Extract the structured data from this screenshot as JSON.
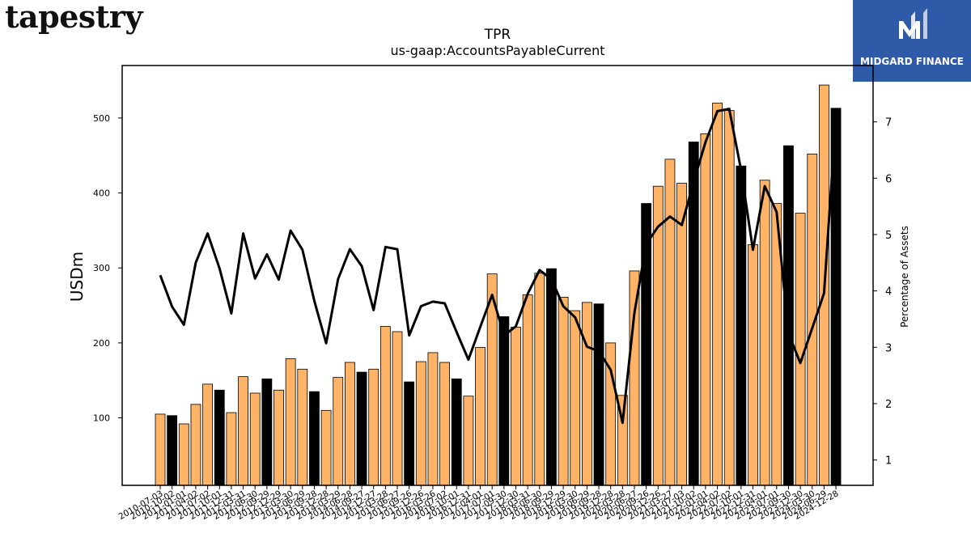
{
  "brand": {
    "name": "tapestry"
  },
  "logo": {
    "name": "MIDGARD FINANCE",
    "colors": {
      "background": "#2f5aa8",
      "text": "#ffffff"
    }
  },
  "chart_data": {
    "type": "bar",
    "title": "TPR",
    "subtitle": "us-gaap:AccountsPayableCurrent",
    "ylabel": "USDm",
    "y2label": "Percentage of Assets",
    "ylim": [
      10,
      570
    ],
    "y2lim": [
      0.55,
      8.0
    ],
    "yticks": [
      100,
      200,
      300,
      400,
      500
    ],
    "y2ticks": [
      1,
      2,
      3,
      4,
      5,
      6,
      7
    ],
    "colors": {
      "quarter": "#ffb366",
      "fiscal_year_end": "#000000",
      "line": "#000000"
    },
    "categories": [
      "2010-07-03",
      "2010-10-02",
      "2011-01-01",
      "2011-04-02",
      "2011-07-02",
      "2011-10-01",
      "2011-12-31",
      "2012-03-31",
      "2012-06-30",
      "2012-09-29",
      "2012-12-29",
      "2013-03-30",
      "2013-06-29",
      "2013-09-28",
      "2013-12-28",
      "2014-03-29",
      "2014-06-28",
      "2014-09-27",
      "2014-12-27",
      "2015-03-28",
      "2015-06-27",
      "2015-09-26",
      "2015-12-26",
      "2016-03-26",
      "2016-07-02",
      "2016-10-01",
      "2016-12-31",
      "2017-04-01",
      "2017-07-01",
      "2017-09-30",
      "2017-12-30",
      "2018-03-31",
      "2018-06-30",
      "2018-09-29",
      "2018-12-29",
      "2019-03-30",
      "2019-06-29",
      "2019-09-28",
      "2019-12-28",
      "2020-03-28",
      "2020-06-27",
      "2020-09-26",
      "2020-12-26",
      "2021-03-27",
      "2021-07-03",
      "2021-10-02",
      "2022-01-01",
      "2022-04-02",
      "2022-07-02",
      "2022-10-01",
      "2022-12-31",
      "2023-04-01",
      "2023-07-01",
      "2023-09-30",
      "2023-12-30",
      "2024-03-30",
      "2024-06-29",
      "2024-12-28"
    ],
    "series": [
      {
        "values": [
          105,
          103,
          92,
          118,
          145,
          137,
          107,
          155,
          133,
          152,
          137,
          179,
          165,
          135,
          110,
          154,
          174,
          161,
          165,
          222,
          215,
          148,
          175,
          187,
          174,
          152,
          129,
          194,
          292,
          235,
          221,
          264,
          293,
          299,
          261,
          243,
          254,
          252,
          200,
          130,
          296,
          386,
          409,
          445,
          413,
          468,
          479,
          520,
          510,
          436,
          331,
          417,
          386,
          463,
          373,
          452,
          544,
          513
        ]
      },
      {
        "values": [
          4.28,
          3.72,
          3.4,
          4.5,
          5.02,
          4.4,
          3.6,
          5.02,
          4.22,
          4.65,
          4.2,
          5.07,
          4.73,
          3.82,
          3.07,
          4.21,
          4.74,
          4.44,
          3.66,
          4.78,
          4.74,
          3.21,
          3.73,
          3.81,
          3.78,
          3.27,
          2.78,
          3.36,
          3.93,
          3.21,
          3.37,
          3.95,
          4.37,
          4.21,
          3.73,
          3.53,
          3.01,
          2.93,
          2.6,
          1.66,
          3.61,
          4.83,
          5.14,
          5.32,
          5.17,
          5.94,
          6.64,
          7.19,
          7.23,
          6.14,
          4.73,
          5.86,
          5.4,
          3.24,
          2.72,
          3.34,
          3.96,
          7.1
        ]
      }
    ],
    "fiscal_year_end_flags": [
      0,
      1,
      0,
      0,
      0,
      1,
      0,
      0,
      0,
      1,
      0,
      0,
      0,
      1,
      0,
      0,
      0,
      1,
      0,
      0,
      0,
      1,
      0,
      0,
      0,
      1,
      0,
      0,
      0,
      1,
      0,
      0,
      0,
      1,
      0,
      0,
      0,
      1,
      0,
      0,
      0,
      1,
      0,
      0,
      0,
      1,
      0,
      0,
      0,
      1,
      0,
      0,
      0,
      1,
      0,
      0,
      0,
      1
    ],
    "legend": "none",
    "grid": false
  }
}
